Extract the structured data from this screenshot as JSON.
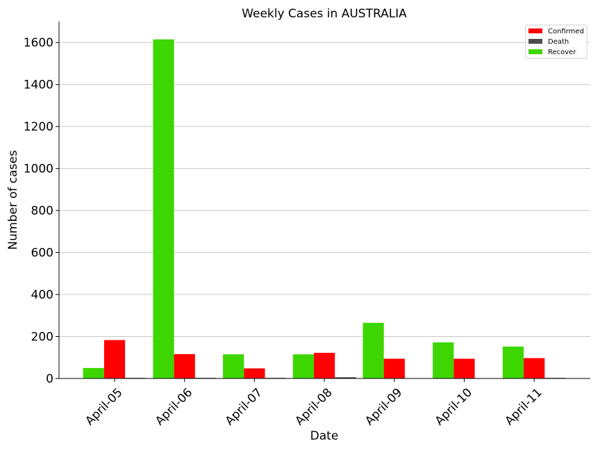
{
  "chart_data": {
    "type": "bar",
    "title": "Weekly Cases in AUSTRALIA",
    "xlabel": "Date",
    "ylabel": "Number of cases",
    "categories": [
      "April-05",
      "April-06",
      "April-07",
      "April-08",
      "April-09",
      "April-10",
      "April-11"
    ],
    "ylim": [
      0,
      1700
    ],
    "yticks": [
      0,
      200,
      400,
      600,
      800,
      1000,
      1200,
      1400,
      1600
    ],
    "grid": "horizontal",
    "legend_position": "top-right",
    "series": [
      {
        "name": "Recover",
        "color": "#3ed600",
        "values": [
          50,
          1615,
          115,
          115,
          265,
          172,
          152
        ]
      },
      {
        "name": "Confirmed",
        "color": "#ff0000",
        "values": [
          183,
          116,
          48,
          122,
          94,
          94,
          97
        ]
      },
      {
        "name": "Death",
        "color": "#4d4d4d",
        "values": [
          3,
          3,
          3,
          6,
          1,
          1,
          3
        ]
      }
    ],
    "legend_order": [
      "Confirmed",
      "Death",
      "Recover"
    ]
  }
}
